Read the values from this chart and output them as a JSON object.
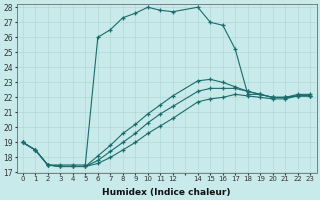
{
  "xlabel": "Humidex (Indice chaleur)",
  "xlim": [
    -0.5,
    23.5
  ],
  "ylim": [
    17,
    28.2
  ],
  "yticks": [
    17,
    18,
    19,
    20,
    21,
    22,
    23,
    24,
    25,
    26,
    27,
    28
  ],
  "xtick_labels": [
    "0",
    "1",
    "2",
    "3",
    "4",
    "5",
    "6",
    "7",
    "8",
    "9",
    "10",
    "11",
    "12",
    "",
    "14",
    "15",
    "16",
    "17",
    "18",
    "19",
    "20",
    "21",
    "22",
    "23"
  ],
  "xtick_pos": [
    0,
    1,
    2,
    3,
    4,
    5,
    6,
    7,
    8,
    9,
    10,
    11,
    12,
    13,
    14,
    15,
    16,
    17,
    18,
    19,
    20,
    21,
    22,
    23
  ],
  "bg_color": "#c8eaea",
  "line_color": "#1a6b6b",
  "grid_color": "#b0d8d8",
  "main_x": [
    0,
    1,
    2,
    3,
    4,
    5,
    6,
    7,
    8,
    9,
    10,
    11,
    12,
    14,
    15,
    16,
    17,
    18,
    19,
    20,
    21,
    22,
    23
  ],
  "main_y": [
    19,
    18.5,
    17.5,
    17.5,
    17.5,
    17.5,
    26.0,
    26.5,
    27.3,
    27.6,
    28.0,
    27.8,
    27.7,
    28.0,
    27.0,
    26.8,
    25.2,
    22.2,
    22.2,
    22.0,
    22.0,
    22.2,
    22.2
  ],
  "line2_x": [
    0,
    1,
    2,
    3,
    4,
    5,
    6,
    7,
    8,
    9,
    10,
    11,
    12,
    14,
    15,
    16,
    17,
    18,
    19,
    20,
    21,
    22,
    23
  ],
  "line2_y": [
    19,
    18.5,
    17.5,
    17.4,
    17.4,
    17.4,
    17.6,
    18.0,
    18.5,
    19.0,
    19.6,
    20.1,
    20.6,
    21.7,
    21.9,
    22.0,
    22.2,
    22.1,
    22.0,
    21.9,
    21.9,
    22.1,
    22.1
  ],
  "line3_x": [
    0,
    1,
    2,
    3,
    4,
    5,
    6,
    7,
    8,
    9,
    10,
    11,
    12,
    14,
    15,
    16,
    17,
    18,
    19,
    20,
    21,
    22,
    23
  ],
  "line3_y": [
    19,
    18.5,
    17.5,
    17.4,
    17.4,
    17.4,
    17.8,
    18.4,
    19.0,
    19.6,
    20.3,
    20.9,
    21.4,
    22.4,
    22.6,
    22.6,
    22.6,
    22.4,
    22.2,
    22.0,
    22.0,
    22.1,
    22.1
  ],
  "line4_x": [
    0,
    1,
    2,
    3,
    4,
    5,
    6,
    7,
    8,
    9,
    10,
    11,
    12,
    14,
    15,
    16,
    17,
    18,
    19,
    20,
    21,
    22,
    23
  ],
  "line4_y": [
    19,
    18.5,
    17.5,
    17.4,
    17.4,
    17.4,
    18.1,
    18.8,
    19.6,
    20.2,
    20.9,
    21.5,
    22.1,
    23.1,
    23.2,
    23.0,
    22.7,
    22.4,
    22.2,
    22.0,
    22.0,
    22.1,
    22.1
  ]
}
